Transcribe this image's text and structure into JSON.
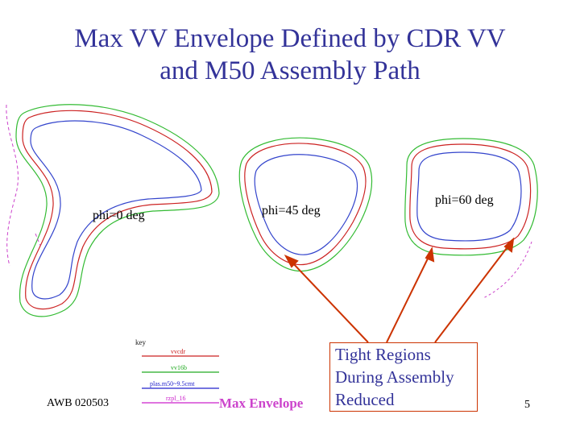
{
  "title": {
    "line1": "Max VV Envelope Defined by CDR VV",
    "line2": "and M50 Assembly Path"
  },
  "panels": [
    {
      "label": "phi=0 deg"
    },
    {
      "label": "phi=45 deg"
    },
    {
      "label": "phi=60 deg"
    }
  ],
  "callout": {
    "line1": "Tight Regions",
    "line2": "During Assembly",
    "line3": "Reduced"
  },
  "key": {
    "title": "key",
    "entries": [
      {
        "label": "vvcdr",
        "color": "#cc2222"
      },
      {
        "label": "vv16b",
        "color": "#22aa22"
      },
      {
        "label": "plas.m50~9.5cmt",
        "color": "#2222cc"
      },
      {
        "label": "rzpl_16",
        "color": "#cc22cc"
      }
    ]
  },
  "max_envelope_label": "Max Envelope",
  "footer": {
    "left": "AWB 020503",
    "page": "5"
  },
  "colors": {
    "title": "#333399",
    "arrow": "#cc3300",
    "green": "#33bb33",
    "blue": "#3344cc",
    "red": "#cc2222"
  }
}
